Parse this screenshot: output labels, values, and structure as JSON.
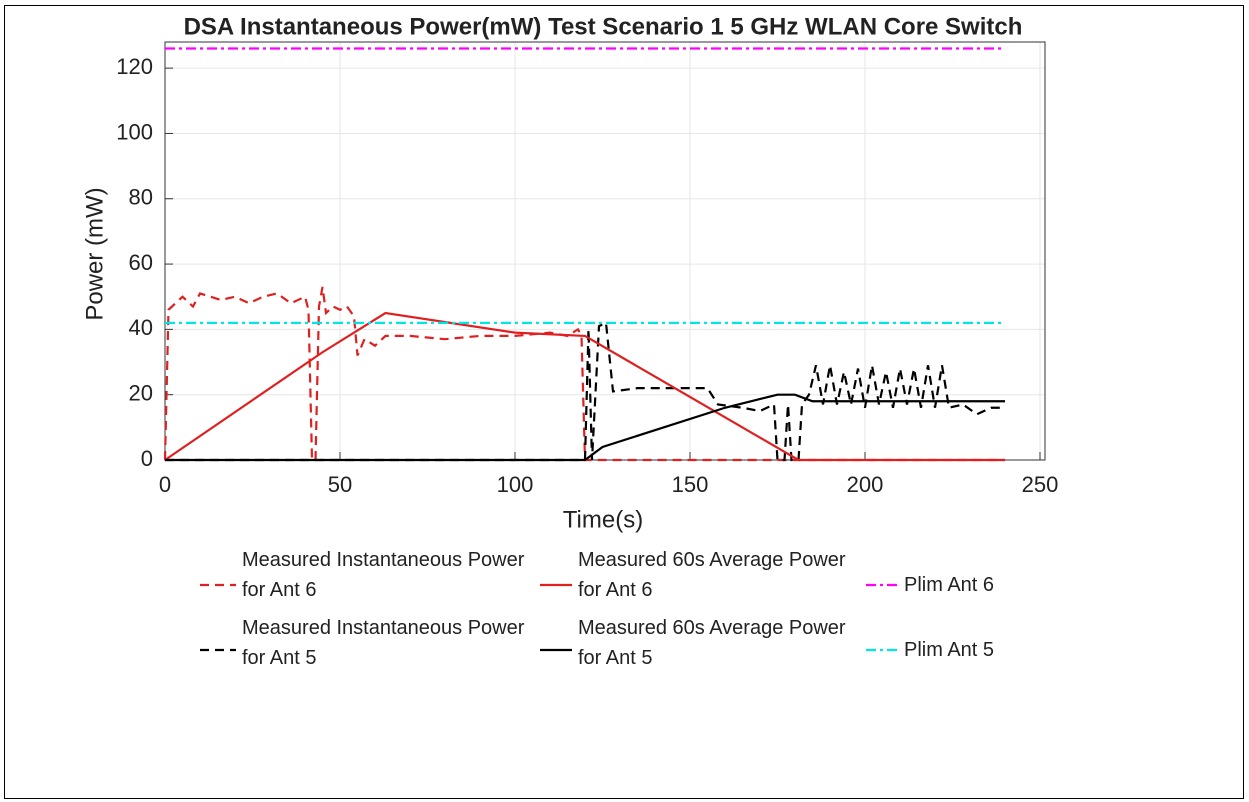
{
  "chart_data": {
    "type": "line",
    "title": "DSA Instantaneous Power(mW) Test Scenario 1 5 GHz WLAN Core Switch",
    "xlabel": "Time(s)",
    "ylabel": "Power (mW)",
    "xlim": [
      0,
      250
    ],
    "ylim": [
      0,
      128
    ],
    "xticks": [
      0,
      50,
      100,
      150,
      200,
      250
    ],
    "yticks": [
      0,
      20,
      40,
      60,
      80,
      100,
      120
    ],
    "grid": true,
    "series": [
      {
        "name": "Measured Instantaneous Power for Ant 6",
        "color": "#e02020",
        "line_style": "dashed",
        "x": [
          0,
          1,
          3,
          5,
          8,
          10,
          13,
          16,
          20,
          24,
          28,
          32,
          36,
          40,
          41,
          42,
          43,
          44,
          45,
          46,
          48,
          50,
          52,
          54,
          55,
          57,
          60,
          63,
          70,
          80,
          90,
          100,
          110,
          115,
          118,
          119,
          120,
          121,
          180,
          240
        ],
        "values": [
          0,
          46,
          48,
          50,
          47,
          51,
          50,
          49,
          50,
          48,
          50,
          51,
          48,
          50,
          46,
          0,
          0,
          47,
          53,
          45,
          47,
          46,
          47,
          44,
          32,
          37,
          35,
          38,
          38,
          37,
          38,
          38,
          39,
          38,
          40,
          38,
          0,
          0,
          0,
          0
        ]
      },
      {
        "name": "Measured Instantaneous Power for Ant 5",
        "color": "#000000",
        "line_style": "dashed",
        "x": [
          0,
          120,
          121,
          122,
          124,
          126,
          128,
          135,
          145,
          155,
          158,
          165,
          170,
          174,
          175,
          177,
          178,
          179,
          181,
          182,
          184,
          186,
          188,
          190,
          192,
          194,
          196,
          198,
          200,
          202,
          204,
          206,
          208,
          210,
          212,
          214,
          216,
          218,
          220,
          222,
          224,
          228,
          232,
          236,
          240
        ],
        "values": [
          0,
          0,
          40,
          0,
          41,
          42,
          21,
          22,
          22,
          22,
          17,
          16,
          15,
          17,
          0,
          0,
          17,
          0,
          0,
          17,
          20,
          29,
          17,
          29,
          17,
          27,
          17,
          28,
          16,
          29,
          17,
          27,
          16,
          28,
          17,
          28,
          16,
          29,
          16,
          29,
          16,
          17,
          14,
          16,
          16
        ]
      },
      {
        "name": "Measured 60s Average Power for Ant 6",
        "color": "#e02020",
        "line_style": "solid",
        "x": [
          0,
          45,
          63,
          100,
          120,
          181,
          240
        ],
        "values": [
          0,
          33,
          45,
          39,
          38,
          0,
          0
        ]
      },
      {
        "name": "Measured 60s Average Power for Ant 5",
        "color": "#000000",
        "line_style": "solid",
        "x": [
          0,
          120,
          125,
          160,
          175,
          180,
          185,
          200,
          230,
          238,
          240
        ],
        "values": [
          0,
          0,
          4,
          16,
          20,
          20,
          18,
          18,
          18,
          18,
          18
        ]
      },
      {
        "name": "Plim Ant 6",
        "color": "#ff00ff",
        "line_style": "dashdot",
        "x": [
          0,
          240
        ],
        "values": [
          126,
          126
        ]
      },
      {
        "name": "Plim Ant 5",
        "color": "#00e5e5",
        "line_style": "dashdot",
        "x": [
          0,
          240
        ],
        "values": [
          42,
          42
        ]
      }
    ]
  }
}
